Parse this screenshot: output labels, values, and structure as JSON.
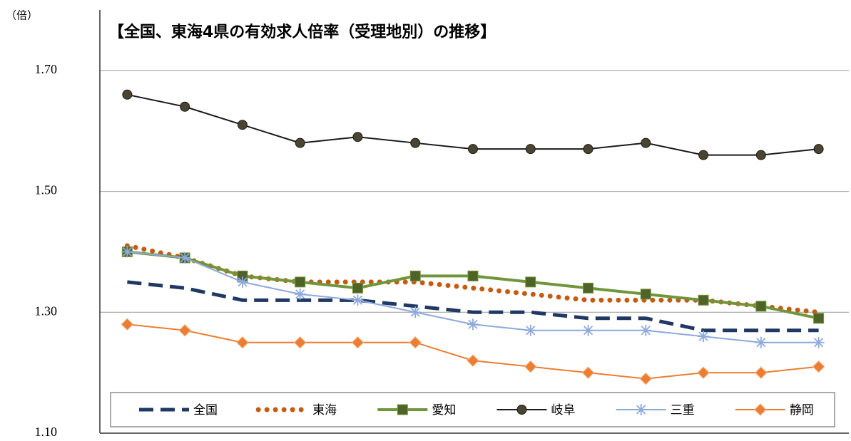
{
  "chart_data": {
    "type": "line",
    "title": "【全国、東海4県の有効求人倍率（受理地別）の推移】",
    "y_label": "（倍）",
    "categories": [
      null,
      null,
      null,
      null,
      null,
      null,
      null,
      null,
      null,
      null,
      null,
      null,
      null
    ],
    "ylim": [
      1.1,
      1.8
    ],
    "yticks": [
      {
        "value": 1.1,
        "label": "1.10"
      },
      {
        "value": 1.3,
        "label": "1.30"
      },
      {
        "value": 1.5,
        "label": "1.50"
      },
      {
        "value": 1.7,
        "label": "1.70"
      }
    ],
    "grid": true,
    "legend": "bottom",
    "series": [
      {
        "name": "全国",
        "color": "#1f3864",
        "dash": "dash",
        "marker": "none",
        "values": [
          1.35,
          1.34,
          1.32,
          1.32,
          1.32,
          1.31,
          1.3,
          1.3,
          1.29,
          1.29,
          1.27,
          1.27,
          1.27
        ]
      },
      {
        "name": "東海",
        "color": "#c55a11",
        "dash": "dot",
        "marker": "none",
        "values": [
          1.41,
          1.39,
          1.36,
          1.35,
          1.35,
          1.35,
          1.34,
          1.33,
          1.32,
          1.32,
          1.32,
          1.31,
          1.3
        ]
      },
      {
        "name": "愛知",
        "color": "#70963a",
        "dash": "solid",
        "marker": "square",
        "values": [
          1.4,
          1.39,
          1.36,
          1.35,
          1.34,
          1.36,
          1.36,
          1.35,
          1.34,
          1.33,
          1.32,
          1.31,
          1.29
        ]
      },
      {
        "name": "岐阜",
        "color": "#1a1a1a",
        "dash": "solid",
        "marker": "circle",
        "values": [
          1.66,
          1.64,
          1.61,
          1.58,
          1.59,
          1.58,
          1.57,
          1.57,
          1.57,
          1.58,
          1.56,
          1.56,
          1.57
        ]
      },
      {
        "name": "三重",
        "color": "#8ea9db",
        "dash": "solid",
        "marker": "star",
        "values": [
          1.4,
          1.39,
          1.35,
          1.33,
          1.32,
          1.3,
          1.28,
          1.27,
          1.27,
          1.27,
          1.26,
          1.25,
          1.25
        ]
      },
      {
        "name": "静岡",
        "color": "#ed7d31",
        "dash": "solid",
        "marker": "diamond",
        "values": [
          1.28,
          1.27,
          1.25,
          1.25,
          1.25,
          1.25,
          1.22,
          1.21,
          1.2,
          1.19,
          1.2,
          1.2,
          1.21
        ]
      }
    ]
  }
}
